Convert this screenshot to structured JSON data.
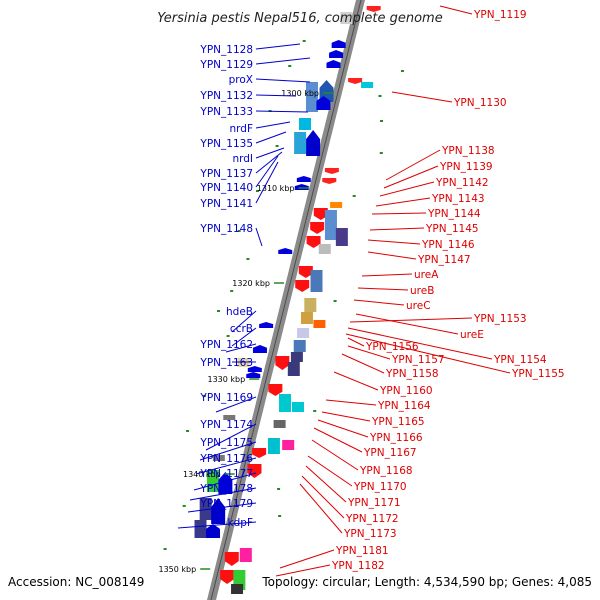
{
  "title": "Yersinia pestis Nepal516, complete genome",
  "accession": "Accession: NC_008149",
  "topology": "Topology: circular; Length: 4,534,590 bp; Genes: 4,085",
  "colors": {
    "left_label": "#0000cc",
    "right_label": "#dd0000",
    "backbone": "#888888",
    "tick": "#228b22"
  },
  "ticks": [
    "1300 kbp",
    "1310 kbp",
    "1320 kbp",
    "1330 kbp",
    "1340 kbp",
    "1350 kbp"
  ],
  "left_labels": [
    "YPN_1128",
    "YPN_1129",
    "proX",
    "YPN_1132",
    "YPN_1133",
    "nrdF",
    "YPN_1135",
    "nrdI",
    "YPN_1137",
    "YPN_1140",
    "YPN_1141",
    "YPN_1148",
    "hdeB",
    "ccrB",
    "YPN_1162",
    "YPN_1163",
    "YPN_1169",
    "YPN_1174",
    "YPN_1175",
    "YPN_1176",
    "YPN_1177",
    "YPN_1178",
    "YPN_1179",
    "kdpF"
  ],
  "right_labels": [
    "YPN_1119",
    "YPN_1130",
    "YPN_1138",
    "YPN_1139",
    "YPN_1142",
    "YPN_1143",
    "YPN_1144",
    "YPN_1145",
    "YPN_1146",
    "YPN_1147",
    "ureA",
    "ureB",
    "ureC",
    "ureE",
    "YPN_1153",
    "YPN_1154",
    "YPN_1155",
    "YPN_1156",
    "YPN_1157",
    "YPN_1158",
    "YPN_1160",
    "YPN_1164",
    "YPN_1165",
    "YPN_1166",
    "YPN_1167",
    "YPN_1168",
    "YPN_1170",
    "YPN_1171",
    "YPN_1172",
    "YPN_1173",
    "YPN_1181",
    "YPN_1182"
  ]
}
